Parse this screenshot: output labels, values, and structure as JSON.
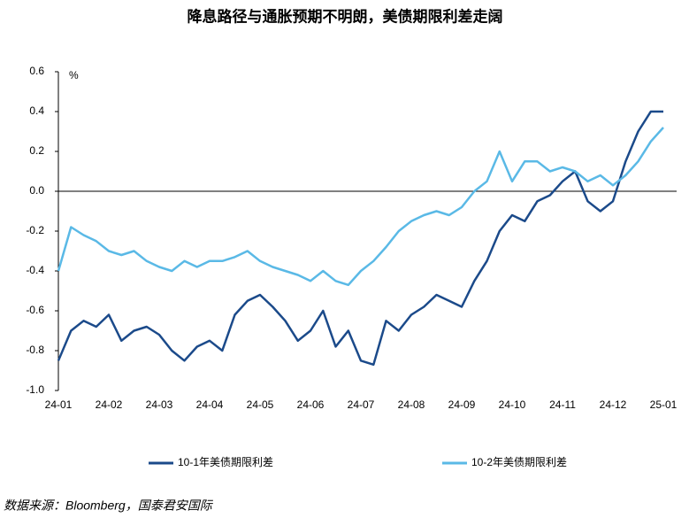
{
  "chart_data": {
    "type": "line",
    "title": "降息路径与通胀预期不明朗，美债期限利差走阔",
    "y_unit": "%",
    "source": "数据来源：Bloomberg，国泰君安国际",
    "categories": [
      "24-01",
      null,
      null,
      null,
      "24-02",
      null,
      null,
      null,
      "24-03",
      null,
      null,
      null,
      "24-04",
      null,
      null,
      null,
      "24-05",
      null,
      null,
      null,
      "24-06",
      null,
      null,
      null,
      "24-07",
      null,
      null,
      null,
      "24-08",
      null,
      null,
      null,
      "24-09",
      null,
      null,
      null,
      "24-10",
      null,
      null,
      null,
      "24-11",
      null,
      null,
      null,
      "24-12",
      null,
      null,
      null,
      "25-01"
    ],
    "series": [
      {
        "name": "10-1年美债期限利差",
        "color": "#1b4a8a",
        "values": [
          -0.85,
          -0.7,
          -0.65,
          -0.68,
          -0.62,
          -0.75,
          -0.7,
          -0.68,
          -0.72,
          -0.8,
          -0.85,
          -0.78,
          -0.75,
          -0.8,
          -0.62,
          -0.55,
          -0.52,
          -0.58,
          -0.65,
          -0.75,
          -0.7,
          -0.6,
          -0.78,
          -0.7,
          -0.85,
          -0.87,
          -0.65,
          -0.7,
          -0.62,
          -0.58,
          -0.52,
          -0.55,
          -0.58,
          -0.45,
          -0.35,
          -0.2,
          -0.12,
          -0.15,
          -0.05,
          -0.02,
          0.05,
          0.1,
          -0.05,
          -0.1,
          -0.05,
          0.15,
          0.3,
          0.4,
          0.4
        ]
      },
      {
        "name": "10-2年美债期限利差",
        "color": "#5ab9e6",
        "values": [
          -0.4,
          -0.18,
          -0.22,
          -0.25,
          -0.3,
          -0.32,
          -0.3,
          -0.35,
          -0.38,
          -0.4,
          -0.35,
          -0.38,
          -0.35,
          -0.35,
          -0.33,
          -0.3,
          -0.35,
          -0.38,
          -0.4,
          -0.42,
          -0.45,
          -0.4,
          -0.45,
          -0.47,
          -0.4,
          -0.35,
          -0.28,
          -0.2,
          -0.15,
          -0.12,
          -0.1,
          -0.12,
          -0.08,
          0.0,
          0.05,
          0.2,
          0.05,
          0.15,
          0.15,
          0.1,
          0.12,
          0.1,
          0.05,
          0.08,
          0.03,
          0.08,
          0.15,
          0.25,
          0.32
        ]
      }
    ],
    "ylim": [
      -1.0,
      0.6
    ],
    "yticks": [
      {
        "value": -1.0,
        "label": "-1.0"
      },
      -0.8,
      -0.6,
      -0.4,
      -0.2,
      {
        "value": 0,
        "label": "0.0"
      },
      0.2,
      0.4,
      0.6
    ]
  }
}
